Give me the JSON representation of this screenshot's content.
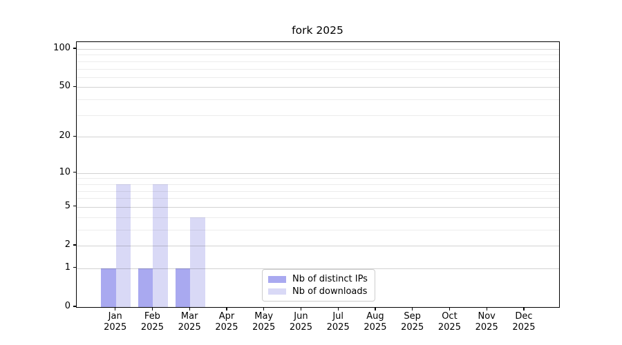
{
  "chart_data": {
    "type": "bar",
    "title": "fork 2025",
    "categories": [
      "Jan 2025",
      "Feb 2025",
      "Mar 2025",
      "Apr 2025",
      "May 2025",
      "Jun 2025",
      "Jul 2025",
      "Aug 2025",
      "Sep 2025",
      "Oct 2025",
      "Nov 2025",
      "Dec 2025"
    ],
    "series": [
      {
        "name": "Nb of distinct IPs",
        "color": "#a9a9f0",
        "values": [
          1,
          1,
          1,
          0,
          0,
          0,
          0,
          0,
          0,
          0,
          0,
          0
        ]
      },
      {
        "name": "Nb of downloads",
        "color": "#d9d9f6",
        "values": [
          8,
          8,
          4,
          0,
          0,
          0,
          0,
          0,
          0,
          0,
          0,
          0
        ]
      }
    ],
    "xlabel": "",
    "ylabel": "",
    "yscale": "log10(1+value)",
    "yticks_major": [
      0,
      1,
      2,
      5,
      10,
      20,
      50,
      100
    ],
    "yticks_minor": [
      3,
      4,
      6,
      7,
      8,
      9,
      30,
      40,
      60,
      70,
      80,
      90
    ],
    "ylim": [
      0,
      113
    ],
    "grid": "horizontal",
    "legend_position": "inside-bottom-center"
  }
}
